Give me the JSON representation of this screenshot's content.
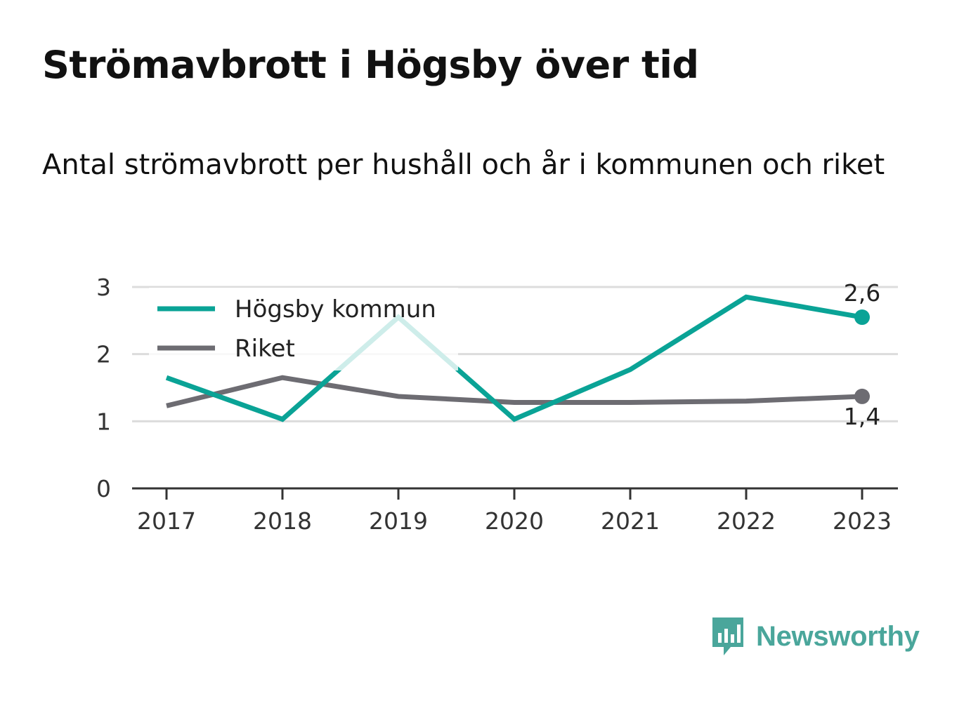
{
  "title": "Strömavbrott i Högsby över tid",
  "subtitle": "Antal strömavbrott per hushåll och år i kommunen och riket",
  "brand": {
    "name": "Newsworthy",
    "icon": "newsworthy-logo-icon",
    "color": "#4aa69b"
  },
  "chart_data": {
    "type": "line",
    "x": [
      2017,
      2018,
      2019,
      2020,
      2021,
      2022,
      2023
    ],
    "series": [
      {
        "name": "Högsby kommun",
        "color": "#0aa396",
        "values": [
          1.65,
          1.03,
          2.55,
          1.03,
          1.77,
          2.85,
          2.55
        ],
        "end_label": "2,6"
      },
      {
        "name": "Riket",
        "color": "#6d6c72",
        "values": [
          1.23,
          1.65,
          1.37,
          1.28,
          1.28,
          1.3,
          1.37
        ],
        "end_label": "1,4"
      }
    ],
    "ylim": [
      0,
      3
    ],
    "yticks": [
      "0",
      "1",
      "2",
      "3"
    ],
    "grid": true,
    "legend": "top-left"
  }
}
